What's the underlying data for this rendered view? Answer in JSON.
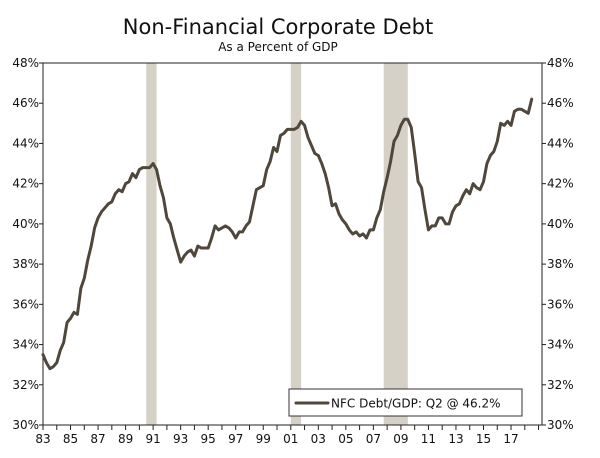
{
  "chart_data": {
    "type": "line",
    "title": "Non-Financial Corporate Debt",
    "subtitle": "As a Percent of GDP",
    "xlabel": "",
    "ylabel": "",
    "x_range": [
      1983.0,
      2019.25
    ],
    "ylim": [
      30,
      48
    ],
    "y_ticks": [
      "30%",
      "32%",
      "34%",
      "36%",
      "38%",
      "40%",
      "42%",
      "44%",
      "46%",
      "48%"
    ],
    "x_ticks": [
      "83",
      "85",
      "87",
      "89",
      "91",
      "93",
      "95",
      "97",
      "99",
      "01",
      "03",
      "05",
      "07",
      "09",
      "11",
      "13",
      "15",
      "17"
    ],
    "grid": false,
    "recessions": [
      {
        "start": 1990.5,
        "end": 1991.25
      },
      {
        "start": 2001.0,
        "end": 2001.75
      },
      {
        "start": 2007.75,
        "end": 2009.5
      }
    ],
    "legend": {
      "placement": "bottom-right"
    },
    "series": [
      {
        "name": "NFC Debt/GDP: Q2 @ 46.2%",
        "color": "#4f463c",
        "points": [
          [
            1983.0,
            33.5
          ],
          [
            1983.25,
            33.1
          ],
          [
            1983.5,
            32.8
          ],
          [
            1983.75,
            32.9
          ],
          [
            1984.0,
            33.1
          ],
          [
            1984.25,
            33.7
          ],
          [
            1984.5,
            34.1
          ],
          [
            1984.75,
            35.1
          ],
          [
            1985.0,
            35.3
          ],
          [
            1985.25,
            35.6
          ],
          [
            1985.5,
            35.5
          ],
          [
            1985.75,
            36.8
          ],
          [
            1986.0,
            37.3
          ],
          [
            1986.25,
            38.2
          ],
          [
            1986.5,
            38.9
          ],
          [
            1986.75,
            39.8
          ],
          [
            1987.0,
            40.3
          ],
          [
            1987.25,
            40.6
          ],
          [
            1987.5,
            40.8
          ],
          [
            1987.75,
            41.0
          ],
          [
            1988.0,
            41.1
          ],
          [
            1988.25,
            41.5
          ],
          [
            1988.5,
            41.7
          ],
          [
            1988.75,
            41.6
          ],
          [
            1989.0,
            42.0
          ],
          [
            1989.25,
            42.1
          ],
          [
            1989.5,
            42.5
          ],
          [
            1989.75,
            42.3
          ],
          [
            1990.0,
            42.7
          ],
          [
            1990.25,
            42.8
          ],
          [
            1990.5,
            42.8
          ],
          [
            1990.75,
            42.8
          ],
          [
            1991.0,
            43.0
          ],
          [
            1991.25,
            42.7
          ],
          [
            1991.5,
            41.9
          ],
          [
            1991.75,
            41.3
          ],
          [
            1992.0,
            40.3
          ],
          [
            1992.25,
            40.0
          ],
          [
            1992.5,
            39.3
          ],
          [
            1992.75,
            38.7
          ],
          [
            1993.0,
            38.1
          ],
          [
            1993.25,
            38.4
          ],
          [
            1993.5,
            38.6
          ],
          [
            1993.75,
            38.7
          ],
          [
            1994.0,
            38.4
          ],
          [
            1994.25,
            38.9
          ],
          [
            1994.5,
            38.8
          ],
          [
            1994.75,
            38.8
          ],
          [
            1995.0,
            38.8
          ],
          [
            1995.25,
            39.3
          ],
          [
            1995.5,
            39.9
          ],
          [
            1995.75,
            39.7
          ],
          [
            1996.0,
            39.8
          ],
          [
            1996.25,
            39.9
          ],
          [
            1996.5,
            39.8
          ],
          [
            1996.75,
            39.6
          ],
          [
            1997.0,
            39.3
          ],
          [
            1997.25,
            39.6
          ],
          [
            1997.5,
            39.6
          ],
          [
            1997.75,
            39.9
          ],
          [
            1998.0,
            40.1
          ],
          [
            1998.25,
            40.9
          ],
          [
            1998.5,
            41.7
          ],
          [
            1998.75,
            41.8
          ],
          [
            1999.0,
            41.9
          ],
          [
            1999.25,
            42.7
          ],
          [
            1999.5,
            43.1
          ],
          [
            1999.75,
            43.8
          ],
          [
            2000.0,
            43.6
          ],
          [
            2000.25,
            44.4
          ],
          [
            2000.5,
            44.5
          ],
          [
            2000.75,
            44.7
          ],
          [
            2001.0,
            44.7
          ],
          [
            2001.25,
            44.7
          ],
          [
            2001.5,
            44.8
          ],
          [
            2001.75,
            45.1
          ],
          [
            2002.0,
            44.9
          ],
          [
            2002.25,
            44.3
          ],
          [
            2002.5,
            43.9
          ],
          [
            2002.75,
            43.5
          ],
          [
            2003.0,
            43.4
          ],
          [
            2003.25,
            43.0
          ],
          [
            2003.5,
            42.5
          ],
          [
            2003.75,
            41.8
          ],
          [
            2004.0,
            40.9
          ],
          [
            2004.25,
            41.0
          ],
          [
            2004.5,
            40.5
          ],
          [
            2004.75,
            40.2
          ],
          [
            2005.0,
            40.0
          ],
          [
            2005.25,
            39.7
          ],
          [
            2005.5,
            39.5
          ],
          [
            2005.75,
            39.6
          ],
          [
            2006.0,
            39.4
          ],
          [
            2006.25,
            39.5
          ],
          [
            2006.5,
            39.3
          ],
          [
            2006.75,
            39.7
          ],
          [
            2007.0,
            39.7
          ],
          [
            2007.25,
            40.3
          ],
          [
            2007.5,
            40.7
          ],
          [
            2007.75,
            41.6
          ],
          [
            2008.0,
            42.3
          ],
          [
            2008.25,
            43.1
          ],
          [
            2008.5,
            44.1
          ],
          [
            2008.75,
            44.4
          ],
          [
            2009.0,
            44.9
          ],
          [
            2009.25,
            45.2
          ],
          [
            2009.5,
            45.2
          ],
          [
            2009.75,
            44.8
          ],
          [
            2010.0,
            43.5
          ],
          [
            2010.25,
            42.1
          ],
          [
            2010.5,
            41.8
          ],
          [
            2010.75,
            40.7
          ],
          [
            2011.0,
            39.7
          ],
          [
            2011.25,
            39.9
          ],
          [
            2011.5,
            39.9
          ],
          [
            2011.75,
            40.3
          ],
          [
            2012.0,
            40.3
          ],
          [
            2012.25,
            40.0
          ],
          [
            2012.5,
            40.0
          ],
          [
            2012.75,
            40.6
          ],
          [
            2013.0,
            40.9
          ],
          [
            2013.25,
            41.0
          ],
          [
            2013.5,
            41.4
          ],
          [
            2013.75,
            41.7
          ],
          [
            2014.0,
            41.5
          ],
          [
            2014.25,
            42.0
          ],
          [
            2014.5,
            41.8
          ],
          [
            2014.75,
            41.7
          ],
          [
            2015.0,
            42.1
          ],
          [
            2015.25,
            43.0
          ],
          [
            2015.5,
            43.4
          ],
          [
            2015.75,
            43.6
          ],
          [
            2016.0,
            44.1
          ],
          [
            2016.25,
            45.0
          ],
          [
            2016.5,
            44.9
          ],
          [
            2016.75,
            45.1
          ],
          [
            2017.0,
            44.9
          ],
          [
            2017.25,
            45.6
          ],
          [
            2017.5,
            45.7
          ],
          [
            2017.75,
            45.7
          ],
          [
            2018.0,
            45.6
          ],
          [
            2018.25,
            45.5
          ],
          [
            2018.5,
            46.2
          ]
        ]
      }
    ]
  },
  "colors": {
    "series_line": "#4f463c",
    "recession_band": "#d5d1c6",
    "axis": "#222222",
    "background": "#ffffff"
  }
}
